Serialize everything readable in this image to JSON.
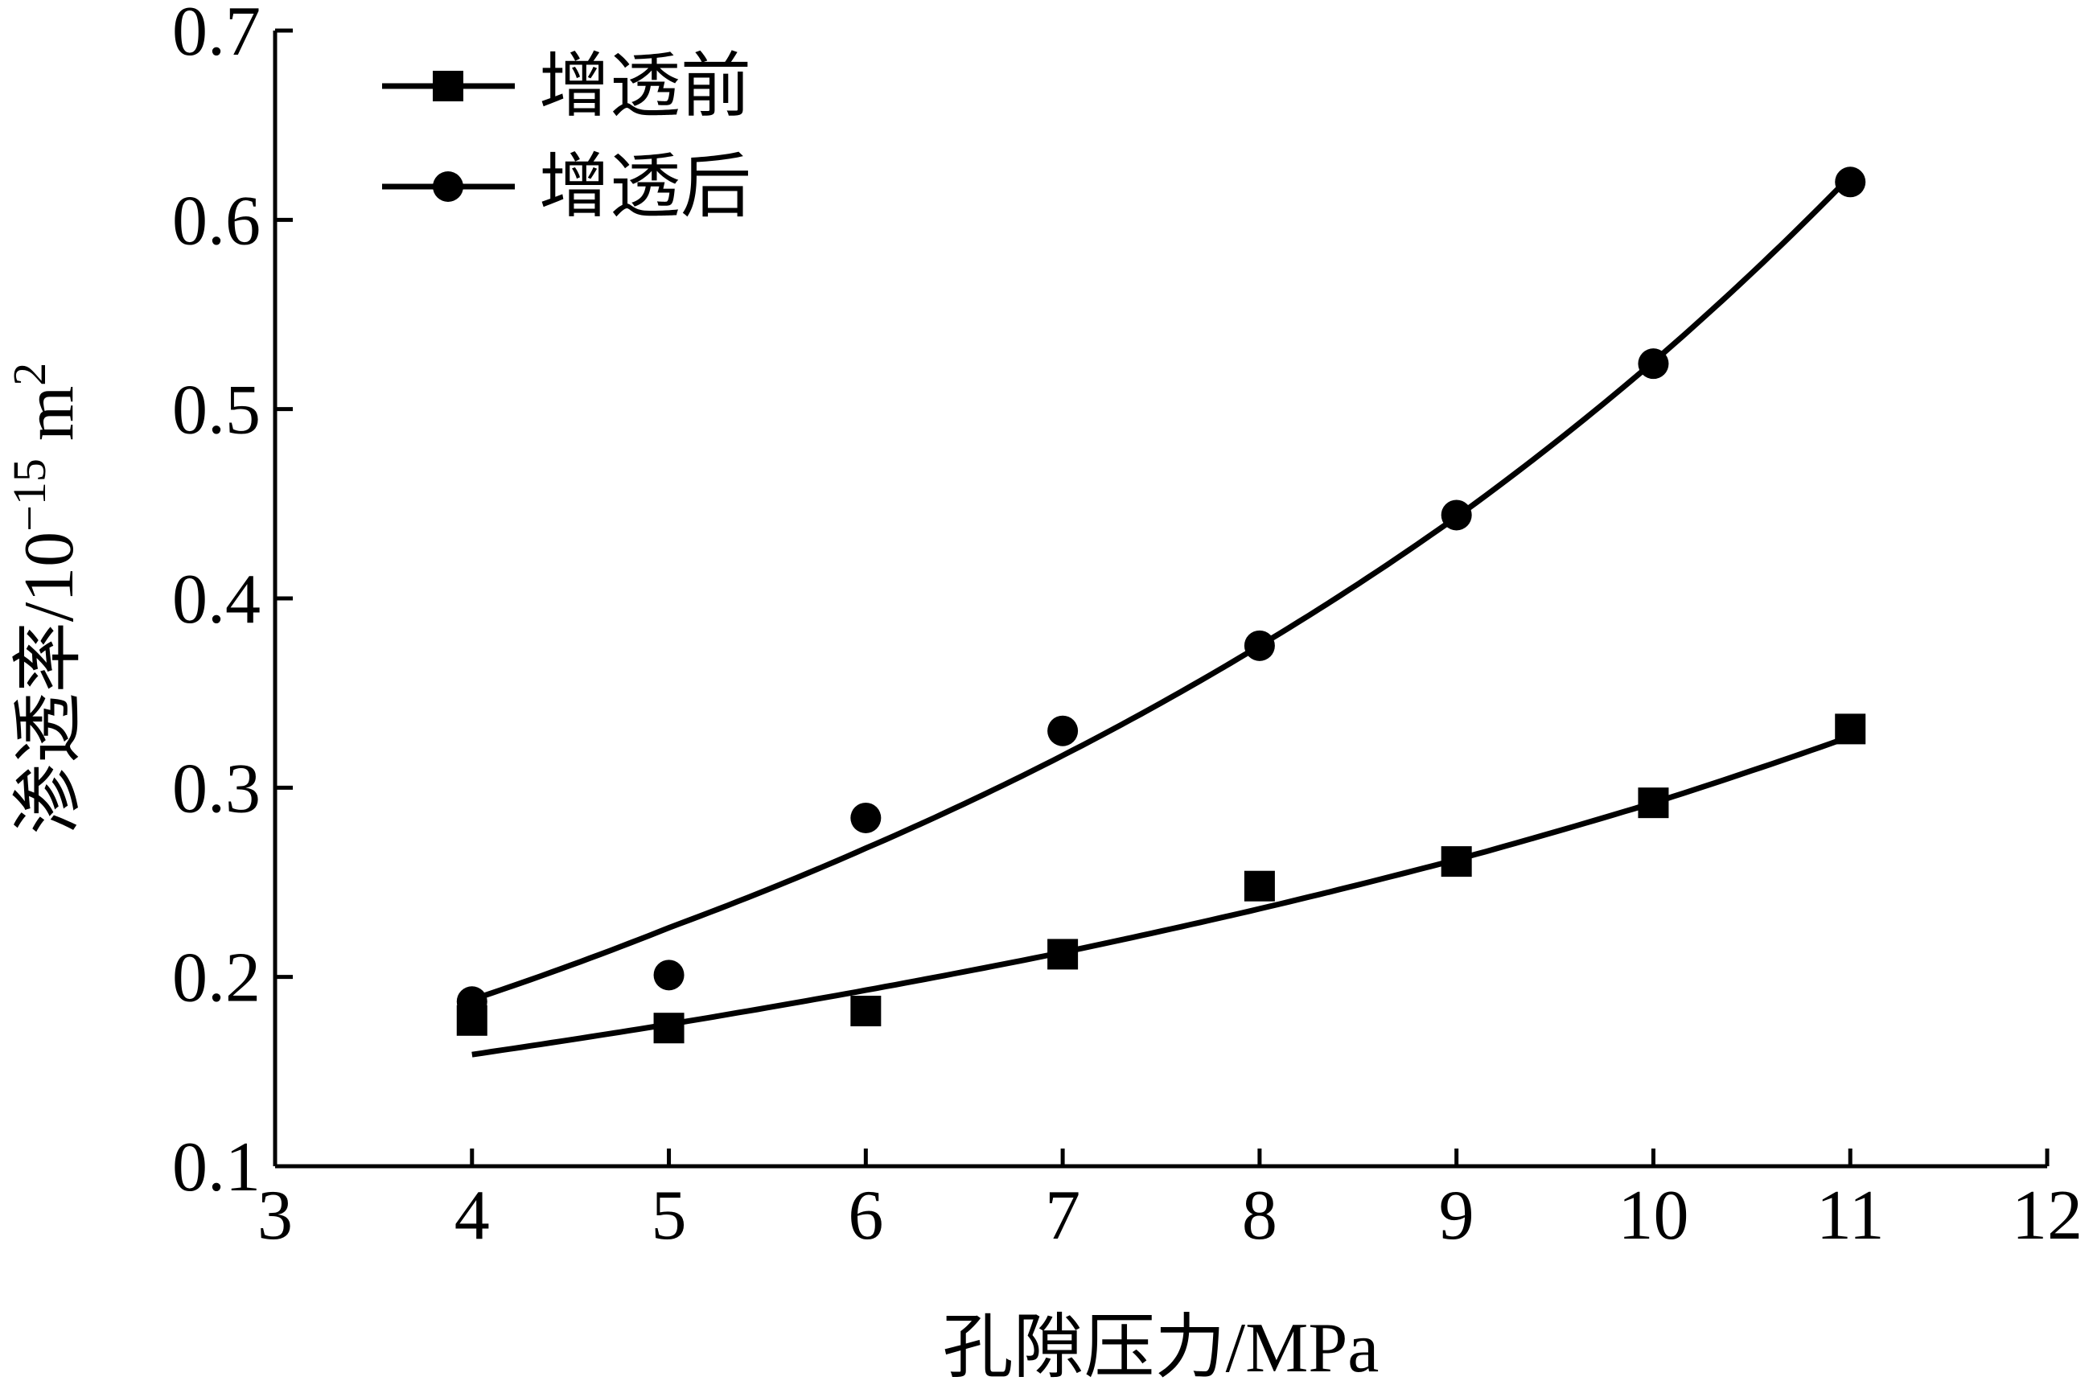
{
  "chart_data": {
    "type": "scatter",
    "xlabel": "孔隙压力/MPa",
    "ylabel_prefix": "渗透率/10",
    "ylabel_exponent": "−15",
    "ylabel_unit": " m",
    "ylabel_unit_exponent": "2",
    "xlim": [
      3,
      12
    ],
    "ylim": [
      0.1,
      0.7
    ],
    "xticks": [
      3,
      4,
      5,
      6,
      7,
      8,
      9,
      10,
      11,
      12
    ],
    "yticks": [
      0.1,
      0.2,
      0.3,
      0.4,
      0.5,
      0.6,
      0.7
    ],
    "xtick_labels": [
      "3",
      "4",
      "5",
      "6",
      "7",
      "8",
      "9",
      "10",
      "11",
      "12"
    ],
    "ytick_labels": [
      "0.1",
      "0.2",
      "0.3",
      "0.4",
      "0.5",
      "0.6",
      "0.7"
    ],
    "legend_position": "top-left",
    "series": [
      {
        "name": "增透前",
        "marker": "square",
        "color": "#000000",
        "x": [
          4,
          5,
          6,
          7,
          8,
          9,
          10,
          11
        ],
        "y": [
          0.177,
          0.173,
          0.182,
          0.212,
          0.248,
          0.261,
          0.292,
          0.331
        ],
        "fit_y": [
          0.159,
          0.175,
          0.193,
          0.213,
          0.236,
          0.262,
          0.292,
          0.327
        ]
      },
      {
        "name": "增透后",
        "marker": "circle",
        "color": "#000000",
        "x": [
          4,
          5,
          6,
          7,
          8,
          9,
          10,
          11
        ],
        "y": [
          0.187,
          0.201,
          0.284,
          0.33,
          0.375,
          0.444,
          0.524,
          0.62
        ],
        "fit_y": [
          0.188,
          0.226,
          0.268,
          0.317,
          0.375,
          0.443,
          0.525,
          0.623
        ]
      }
    ]
  }
}
